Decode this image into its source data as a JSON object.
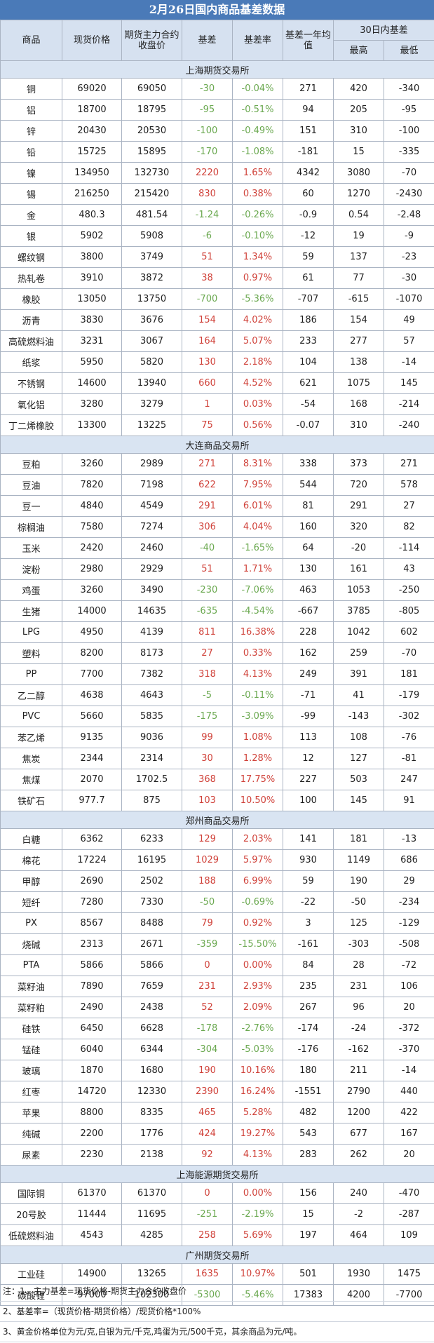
{
  "title": "2月26日国内商品基差数据",
  "headers": {
    "name": "商品",
    "spot": "现货价格",
    "futures": "期货主力合约收盘价",
    "basis": "基差",
    "rate": "基差率",
    "yearavg": "基差一年均值",
    "range30": "30日内基差",
    "max": "最高",
    "min": "最低"
  },
  "colors": {
    "positive": "#d0423a",
    "negative": "#6aa84f",
    "header_bg": "#d6e1f0",
    "title_bg": "#4a7ab8"
  },
  "sections": [
    {
      "name": "上海期货交易所",
      "rows": [
        [
          "铜",
          "69020",
          "69050",
          "-30",
          "-0.04%",
          "271",
          "420",
          "-340"
        ],
        [
          "铝",
          "18700",
          "18795",
          "-95",
          "-0.51%",
          "94",
          "205",
          "-95"
        ],
        [
          "锌",
          "20430",
          "20530",
          "-100",
          "-0.49%",
          "151",
          "310",
          "-100"
        ],
        [
          "铅",
          "15725",
          "15895",
          "-170",
          "-1.08%",
          "-181",
          "15",
          "-335"
        ],
        [
          "镍",
          "134950",
          "132730",
          "2220",
          "1.65%",
          "4342",
          "3080",
          "-70"
        ],
        [
          "锡",
          "216250",
          "215420",
          "830",
          "0.38%",
          "60",
          "1270",
          "-2430"
        ],
        [
          "金",
          "480.3",
          "481.54",
          "-1.24",
          "-0.26%",
          "-0.9",
          "0.54",
          "-2.48"
        ],
        [
          "银",
          "5902",
          "5908",
          "-6",
          "-0.10%",
          "-12",
          "19",
          "-9"
        ],
        [
          "螺纹钢",
          "3800",
          "3749",
          "51",
          "1.34%",
          "59",
          "137",
          "-23"
        ],
        [
          "热轧卷",
          "3910",
          "3872",
          "38",
          "0.97%",
          "61",
          "77",
          "-30"
        ],
        [
          "橡胶",
          "13050",
          "13750",
          "-700",
          "-5.36%",
          "-707",
          "-615",
          "-1070"
        ],
        [
          "沥青",
          "3830",
          "3676",
          "154",
          "4.02%",
          "186",
          "154",
          "49"
        ],
        [
          "高硫燃料油",
          "3231",
          "3067",
          "164",
          "5.07%",
          "233",
          "277",
          "57"
        ],
        [
          "纸浆",
          "5950",
          "5820",
          "130",
          "2.18%",
          "104",
          "138",
          "-14"
        ],
        [
          "不锈钢",
          "14600",
          "13940",
          "660",
          "4.52%",
          "621",
          "1075",
          "145"
        ],
        [
          "氧化铝",
          "3280",
          "3279",
          "1",
          "0.03%",
          "-54",
          "168",
          "-214"
        ],
        [
          "丁二烯橡胶",
          "13300",
          "13225",
          "75",
          "0.56%",
          "-0.07",
          "310",
          "-240"
        ]
      ]
    },
    {
      "name": "大连商品交易所",
      "rows": [
        [
          "豆粕",
          "3260",
          "2989",
          "271",
          "8.31%",
          "338",
          "373",
          "271"
        ],
        [
          "豆油",
          "7820",
          "7198",
          "622",
          "7.95%",
          "544",
          "720",
          "578"
        ],
        [
          "豆一",
          "4840",
          "4549",
          "291",
          "6.01%",
          "81",
          "291",
          "27"
        ],
        [
          "棕榈油",
          "7580",
          "7274",
          "306",
          "4.04%",
          "160",
          "320",
          "82"
        ],
        [
          "玉米",
          "2420",
          "2460",
          "-40",
          "-1.65%",
          "64",
          "-20",
          "-114"
        ],
        [
          "淀粉",
          "2980",
          "2929",
          "51",
          "1.71%",
          "130",
          "161",
          "43"
        ],
        [
          "鸡蛋",
          "3260",
          "3490",
          "-230",
          "-7.06%",
          "463",
          "1053",
          "-250"
        ],
        [
          "生猪",
          "14000",
          "14635",
          "-635",
          "-4.54%",
          "-667",
          "3785",
          "-805"
        ],
        [
          "LPG",
          "4950",
          "4139",
          "811",
          "16.38%",
          "228",
          "1042",
          "602"
        ],
        [
          "塑料",
          "8200",
          "8173",
          "27",
          "0.33%",
          "162",
          "259",
          "-70"
        ],
        [
          "PP",
          "7700",
          "7382",
          "318",
          "4.13%",
          "249",
          "391",
          "181"
        ],
        [
          "乙二醇",
          "4638",
          "4643",
          "-5",
          "-0.11%",
          "-71",
          "41",
          "-179"
        ],
        [
          "PVC",
          "5660",
          "5835",
          "-175",
          "-3.09%",
          "-99",
          "-143",
          "-302"
        ],
        [
          "苯乙烯",
          "9135",
          "9036",
          "99",
          "1.08%",
          "113",
          "108",
          "-76"
        ],
        [
          "焦炭",
          "2344",
          "2314",
          "30",
          "1.28%",
          "12",
          "127",
          "-81"
        ],
        [
          "焦煤",
          "2070",
          "1702.5",
          "368",
          "17.75%",
          "227",
          "503",
          "247"
        ],
        [
          "铁矿石",
          "977.7",
          "875",
          "103",
          "10.50%",
          "100",
          "145",
          "91"
        ]
      ]
    },
    {
      "name": "郑州商品交易所",
      "rows": [
        [
          "白糖",
          "6362",
          "6233",
          "129",
          "2.03%",
          "141",
          "181",
          "-13"
        ],
        [
          "棉花",
          "17224",
          "16195",
          "1029",
          "5.97%",
          "930",
          "1149",
          "686"
        ],
        [
          "甲醇",
          "2690",
          "2502",
          "188",
          "6.99%",
          "59",
          "190",
          "29"
        ],
        [
          "短纤",
          "7280",
          "7330",
          "-50",
          "-0.69%",
          "-22",
          "-50",
          "-234"
        ],
        [
          "PX",
          "8567",
          "8488",
          "79",
          "0.92%",
          "3",
          "125",
          "-129"
        ],
        [
          "烧碱",
          "2313",
          "2671",
          "-359",
          "-15.50%",
          "-161",
          "-303",
          "-508"
        ],
        [
          "PTA",
          "5866",
          "5866",
          "0",
          "0.00%",
          "84",
          "28",
          "-72"
        ],
        [
          "菜籽油",
          "7890",
          "7659",
          "231",
          "2.93%",
          "235",
          "231",
          "106"
        ],
        [
          "菜籽粕",
          "2490",
          "2438",
          "52",
          "2.09%",
          "267",
          "96",
          "20"
        ],
        [
          "硅铁",
          "6450",
          "6628",
          "-178",
          "-2.76%",
          "-174",
          "-24",
          "-372"
        ],
        [
          "锰硅",
          "6040",
          "6344",
          "-304",
          "-5.03%",
          "-176",
          "-162",
          "-370"
        ],
        [
          "玻璃",
          "1870",
          "1680",
          "190",
          "10.16%",
          "180",
          "211",
          "-14"
        ],
        [
          "红枣",
          "14720",
          "12330",
          "2390",
          "16.24%",
          "-1551",
          "2790",
          "440"
        ],
        [
          "苹果",
          "8800",
          "8335",
          "465",
          "5.28%",
          "482",
          "1200",
          "422"
        ],
        [
          "纯碱",
          "2200",
          "1776",
          "424",
          "19.27%",
          "543",
          "677",
          "167"
        ],
        [
          "尿素",
          "2230",
          "2138",
          "92",
          "4.13%",
          "283",
          "262",
          "20"
        ]
      ]
    },
    {
      "name": "上海能源期货交易所",
      "rows": [
        [
          "国际铜",
          "61370",
          "61370",
          "0",
          "0.00%",
          "156",
          "240",
          "-470"
        ],
        [
          "20号胶",
          "11444",
          "11695",
          "-251",
          "-2.19%",
          "15",
          "-2",
          "-287"
        ],
        [
          "低硫燃料油",
          "4543",
          "4285",
          "258",
          "5.69%",
          "197",
          "464",
          "109"
        ]
      ]
    },
    {
      "name": "广州期货交易所",
      "rows": [
        [
          "工业硅",
          "14900",
          "13265",
          "1635",
          "10.97%",
          "501",
          "1930",
          "1475"
        ],
        [
          "碳酸锂",
          "97000",
          "102300",
          "-5300",
          "-5.46%",
          "17383",
          "4200",
          "-7700"
        ]
      ]
    }
  ],
  "notes": [
    "注：1、主力基差=现货价格-期货主力合约收盘价",
    "2、基差率=（现货价格-期货价格）/现货价格*100%",
    "3、黄金价格单位为元/克,白银为元/千克,鸡蛋为元/500千克，其余商品为元/吨。"
  ]
}
